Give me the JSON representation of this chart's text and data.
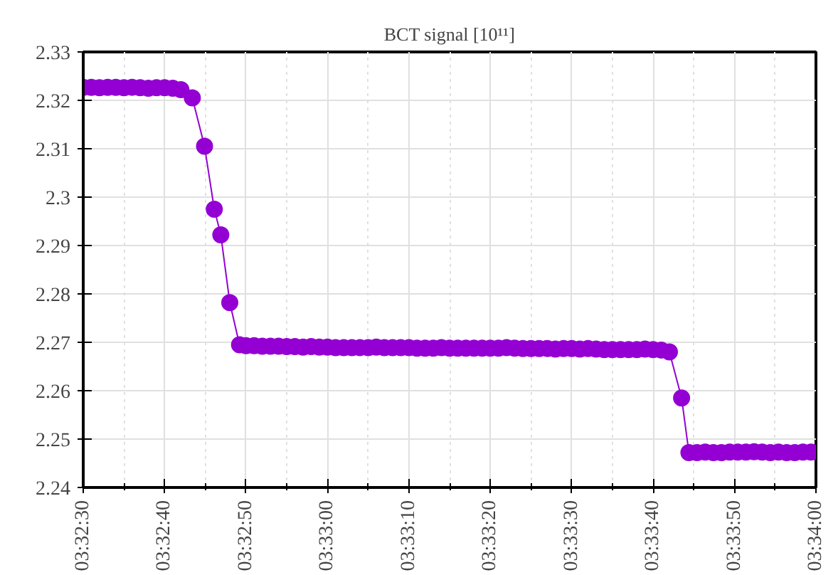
{
  "chart_data": {
    "type": "line",
    "title": "BCT signal [10¹¹]",
    "marker": "circle",
    "line_style": "solid",
    "grid": true,
    "xlim": [
      3.541667,
      3.566667
    ],
    "ylim": [
      2.24,
      2.33
    ],
    "xticks": [
      {
        "value": 3.541667,
        "label": "03:32:30"
      },
      {
        "value": 3.543056,
        "label": null
      },
      {
        "value": 3.544444,
        "label": "03:32:40"
      },
      {
        "value": 3.545833,
        "label": null
      },
      {
        "value": 3.547222,
        "label": "03:32:50"
      },
      {
        "value": 3.548611,
        "label": null
      },
      {
        "value": 3.55,
        "label": "03:33:00"
      },
      {
        "value": 3.551389,
        "label": null
      },
      {
        "value": 3.552778,
        "label": "03:33:10"
      },
      {
        "value": 3.554167,
        "label": null
      },
      {
        "value": 3.555556,
        "label": "03:33:20"
      },
      {
        "value": 3.556944,
        "label": null
      },
      {
        "value": 3.558333,
        "label": "03:33:30"
      },
      {
        "value": 3.559722,
        "label": null
      },
      {
        "value": 3.561111,
        "label": "03:33:40"
      },
      {
        "value": 3.5625,
        "label": null
      },
      {
        "value": 3.563889,
        "label": "03:33:50"
      },
      {
        "value": 3.565278,
        "label": null
      },
      {
        "value": 3.566667,
        "label": "03:34:00"
      }
    ],
    "yticks": [
      2.24,
      2.25,
      2.26,
      2.27,
      2.28,
      2.29,
      2.3,
      2.31,
      2.32,
      2.33
    ],
    "series": [
      {
        "color": "#9400d3",
        "x": [
          3.541667,
          3.541944,
          3.542222,
          3.5425,
          3.542778,
          3.543056,
          3.543333,
          3.543611,
          3.543889,
          3.544167,
          3.544444,
          3.544722,
          3.545,
          3.545389,
          3.545806,
          3.546139,
          3.546361,
          3.546667,
          3.547,
          3.547222,
          3.5475,
          3.547778,
          3.548056,
          3.548333,
          3.548611,
          3.548889,
          3.549167,
          3.549444,
          3.549722,
          3.55,
          3.550278,
          3.550556,
          3.550833,
          3.551111,
          3.551389,
          3.551667,
          3.551944,
          3.552222,
          3.5525,
          3.552778,
          3.553056,
          3.553333,
          3.553611,
          3.553889,
          3.554167,
          3.554444,
          3.554722,
          3.555,
          3.555278,
          3.555556,
          3.555833,
          3.556111,
          3.556389,
          3.556667,
          3.556944,
          3.557222,
          3.5575,
          3.557778,
          3.558056,
          3.558333,
          3.558611,
          3.558889,
          3.559167,
          3.559444,
          3.559722,
          3.56,
          3.560278,
          3.560556,
          3.560833,
          3.561111,
          3.561389,
          3.561667,
          3.562083,
          3.562333,
          3.562611,
          3.562889,
          3.563167,
          3.563444,
          3.563722,
          3.564,
          3.564278,
          3.564556,
          3.564833,
          3.565111,
          3.565389,
          3.565667,
          3.565944,
          3.566222,
          3.5665
        ],
        "values": [
          2.3227,
          2.3227,
          2.3226,
          2.3227,
          2.3227,
          2.3226,
          2.3227,
          2.3226,
          2.3225,
          2.3226,
          2.3226,
          2.3225,
          2.3222,
          2.3205,
          2.3105,
          2.2975,
          2.2922,
          2.2782,
          2.2695,
          2.2693,
          2.2693,
          2.2692,
          2.2692,
          2.2692,
          2.2691,
          2.2691,
          2.269,
          2.2691,
          2.269,
          2.269,
          2.2689,
          2.2689,
          2.2689,
          2.2689,
          2.2689,
          2.269,
          2.2689,
          2.2689,
          2.2689,
          2.2689,
          2.2688,
          2.2688,
          2.2688,
          2.2689,
          2.2688,
          2.2688,
          2.2688,
          2.2688,
          2.2688,
          2.2688,
          2.2688,
          2.2689,
          2.2688,
          2.2687,
          2.2687,
          2.2687,
          2.2687,
          2.2686,
          2.2687,
          2.2687,
          2.2686,
          2.2687,
          2.2686,
          2.2685,
          2.2685,
          2.2685,
          2.2685,
          2.2685,
          2.2686,
          2.2685,
          2.2684,
          2.268,
          2.2585,
          2.2472,
          2.2472,
          2.2473,
          2.2472,
          2.2472,
          2.2473,
          2.2473,
          2.2473,
          2.2474,
          2.2473,
          2.2472,
          2.2473,
          2.2472,
          2.2472,
          2.2473,
          2.2473
        ]
      }
    ]
  }
}
